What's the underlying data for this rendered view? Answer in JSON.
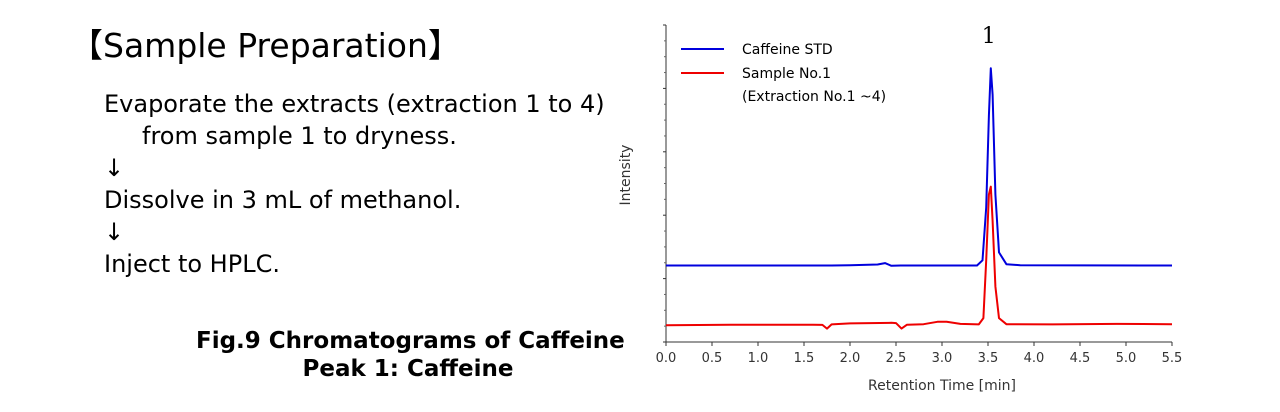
{
  "slide": {
    "title": "【Sample Preparation】",
    "steps": [
      "Evaporate the extracts (extraction 1 to 4)",
      "from sample 1 to dryness.",
      "↓",
      "Dissolve in 3 mL of methanol.",
      "↓",
      "Inject to HPLC."
    ],
    "caption_line1": "Fig.9 Chromatograms of Caffeine",
    "caption_line2": "Peak 1: Caffeine"
  },
  "chart_data": {
    "type": "line",
    "title": "",
    "xlabel": "Retention Time [min]",
    "ylabel": "Intensity",
    "xlim": [
      0.0,
      5.5
    ],
    "ylim": [
      0,
      100
    ],
    "x_ticks": [
      "0.0",
      "0.5",
      "1.0",
      "1.5",
      "2.0",
      "2.5",
      "3.0",
      "3.5",
      "4.0",
      "4.5",
      "5.0",
      "5.5"
    ],
    "y_tick_labels_shown": false,
    "grid": false,
    "legend_position": "top-left",
    "peak_labels": [
      {
        "label": "1",
        "x": 3.53
      }
    ],
    "series": [
      {
        "name": "Caffeine STD",
        "color": "#0000dd",
        "points": [
          [
            0.0,
            23.0
          ],
          [
            1.8,
            23.0
          ],
          [
            2.0,
            23.1
          ],
          [
            2.3,
            23.4
          ],
          [
            2.38,
            23.9
          ],
          [
            2.45,
            22.9
          ],
          [
            2.55,
            23.0
          ],
          [
            3.38,
            23.0
          ],
          [
            3.44,
            25.0
          ],
          [
            3.48,
            45.0
          ],
          [
            3.51,
            80.0
          ],
          [
            3.53,
            98.0
          ],
          [
            3.55,
            88.0
          ],
          [
            3.58,
            50.0
          ],
          [
            3.62,
            28.0
          ],
          [
            3.7,
            23.5
          ],
          [
            3.85,
            23.1
          ],
          [
            5.5,
            23.0
          ]
        ]
      },
      {
        "name": "Sample No.1\n(Extraction No.1 ~4)",
        "color": "#ee0000",
        "points": [
          [
            0.0,
            0.3
          ],
          [
            0.7,
            0.5
          ],
          [
            1.6,
            0.5
          ],
          [
            1.7,
            0.4
          ],
          [
            1.75,
            -1.0
          ],
          [
            1.8,
            0.6
          ],
          [
            2.0,
            1.0
          ],
          [
            2.45,
            1.2
          ],
          [
            2.5,
            1.1
          ],
          [
            2.56,
            -1.0
          ],
          [
            2.62,
            0.5
          ],
          [
            2.8,
            0.7
          ],
          [
            2.95,
            1.6
          ],
          [
            3.05,
            1.6
          ],
          [
            3.2,
            0.8
          ],
          [
            3.4,
            0.6
          ],
          [
            3.45,
            3.0
          ],
          [
            3.48,
            25.0
          ],
          [
            3.51,
            50.0
          ],
          [
            3.53,
            53.0
          ],
          [
            3.55,
            40.0
          ],
          [
            3.58,
            15.0
          ],
          [
            3.62,
            3.0
          ],
          [
            3.7,
            0.7
          ],
          [
            4.2,
            0.6
          ],
          [
            4.9,
            0.8
          ],
          [
            5.5,
            0.7
          ]
        ]
      }
    ]
  }
}
